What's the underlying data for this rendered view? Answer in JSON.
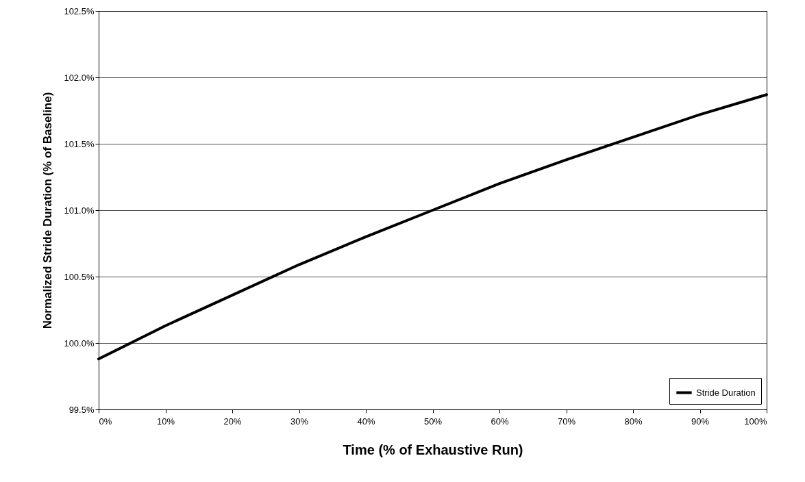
{
  "chart_data": {
    "type": "line",
    "xlabel": "Time (% of Exhaustive Run)",
    "ylabel": "Normalized Stride Duration (% of Baseline)",
    "x": [
      0,
      10,
      20,
      30,
      40,
      50,
      60,
      70,
      80,
      90,
      100
    ],
    "series": [
      {
        "name": "Stride Duration",
        "color": "#000000",
        "values": [
          99.88,
          100.13,
          100.36,
          100.59,
          100.8,
          101.0,
          101.2,
          101.38,
          101.55,
          101.72,
          101.87
        ]
      }
    ],
    "xlim": [
      0,
      100
    ],
    "xticks": [
      {
        "value": 0,
        "label": "0%"
      },
      {
        "value": 10,
        "label": "10%"
      },
      {
        "value": 20,
        "label": "20%"
      },
      {
        "value": 30,
        "label": "30%"
      },
      {
        "value": 40,
        "label": "40%"
      },
      {
        "value": 50,
        "label": "50%"
      },
      {
        "value": 60,
        "label": "60%"
      },
      {
        "value": 70,
        "label": "70%"
      },
      {
        "value": 80,
        "label": "80%"
      },
      {
        "value": 90,
        "label": "90%"
      },
      {
        "value": 100,
        "label": "100%"
      }
    ],
    "ylim": [
      99.5,
      102.5
    ],
    "yticks": [
      {
        "value": 99.5,
        "label": "99.5%"
      },
      {
        "value": 100.0,
        "label": "100.0%"
      },
      {
        "value": 100.5,
        "label": "100.5%"
      },
      {
        "value": 101.0,
        "label": "101.0%"
      },
      {
        "value": 101.5,
        "label": "101.5%"
      },
      {
        "value": 102.0,
        "label": "102.0%"
      },
      {
        "value": 102.5,
        "label": "102.5%"
      }
    ],
    "grid": "y",
    "legend": "bottom right",
    "marker": "none",
    "line_style": "solid"
  }
}
